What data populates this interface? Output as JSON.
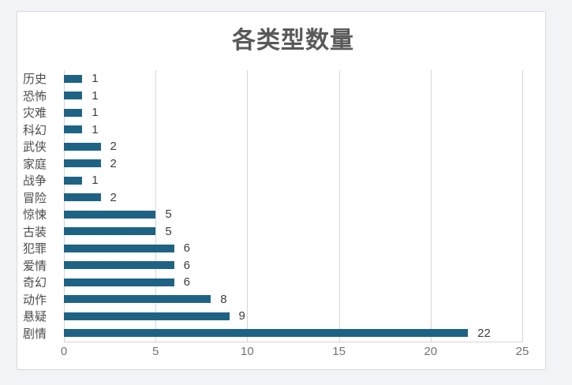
{
  "page": {
    "background": "#f1f3f6"
  },
  "chart": {
    "title": "各类型数量",
    "colors": {
      "bar": "#1f6384",
      "grid": "#d6d6d6",
      "axis": "#d6d6d6",
      "title": "#595959",
      "category_label": "#4d4d4d",
      "value_label": "#3d3d3d",
      "tick_label": "#737373",
      "card_background": "#ffffff",
      "card_border": "#d9d9d9"
    }
  },
  "chart_data": {
    "type": "bar",
    "orientation": "horizontal",
    "title": "各类型数量",
    "categories": [
      "历史",
      "恐怖",
      "灾难",
      "科幻",
      "武侠",
      "家庭",
      "战争",
      "冒险",
      "惊悚",
      "古装",
      "犯罪",
      "爱情",
      "奇幻",
      "动作",
      "悬疑",
      "剧情"
    ],
    "values": [
      1,
      1,
      1,
      1,
      2,
      2,
      1,
      2,
      5,
      5,
      6,
      6,
      6,
      8,
      9,
      22
    ],
    "xlabel": "",
    "ylabel": "",
    "xlim": [
      0,
      25
    ],
    "xticks": [
      0,
      5,
      10,
      15,
      20,
      25
    ],
    "grid": true,
    "value_labels": true,
    "legend": false
  }
}
